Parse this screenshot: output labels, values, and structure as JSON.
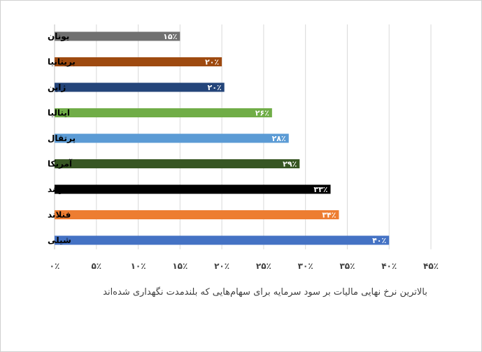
{
  "chart_data": {
    "type": "bar",
    "orientation": "horizontal",
    "title": "",
    "xlabel": "بالاترین نرخ نهایی مالیات بر سود سرمایه برای سهام‌هایی که بلندمدت نگهداری شده‌اند",
    "ylabel": "",
    "xlim": [
      0,
      45
    ],
    "grid": true,
    "x_ticks": [
      0,
      5,
      10,
      15,
      20,
      25,
      30,
      35,
      40,
      45
    ],
    "x_tick_labels": [
      "۰٪",
      "۵٪",
      "۱۰٪",
      "۱۵٪",
      "۲۰٪",
      "۲۵٪",
      "۳۰٪",
      "۳۵٪",
      "۴۰٪",
      "۴۵٪"
    ],
    "categories": [
      "یونان",
      "بریتانیا",
      "ژاپن",
      "ایتالیا",
      "پرتقال",
      "آمریکا",
      "ایرلند",
      "فنلاند",
      "شیلی"
    ],
    "values": [
      15,
      20,
      20.3,
      26,
      28,
      29.3,
      33,
      34,
      40
    ],
    "data_labels": [
      "۱۵٪",
      "۲۰٪",
      "۲۰٪",
      "۲۶٪",
      "۲۸٪",
      "۲۹٪",
      "۳۳٪",
      "۳۴٪",
      "۴۰٪"
    ],
    "colors": [
      "#707070",
      "#9e4a10",
      "#24457a",
      "#70ad47",
      "#5b9bd5",
      "#375623",
      "#000000",
      "#ed7d31",
      "#4472c4"
    ]
  }
}
